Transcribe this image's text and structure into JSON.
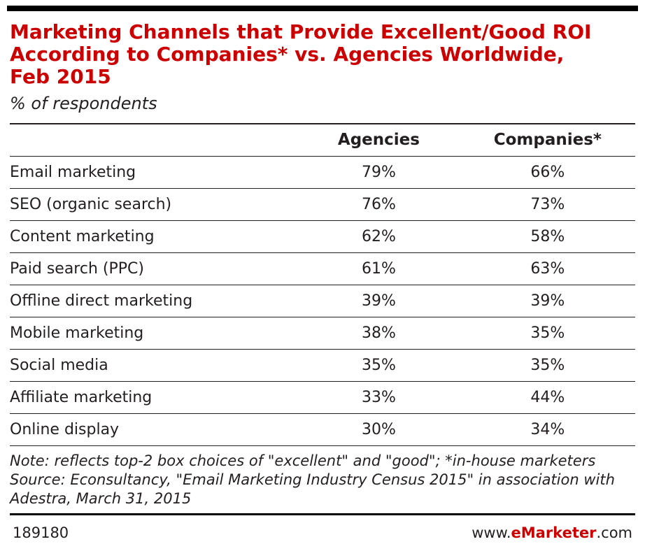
{
  "page": {
    "accent_color": "#cc0000",
    "text_color": "#231f20",
    "rule_color": "#231f20"
  },
  "header": {
    "title_lines": [
      "Marketing Channels that Provide Excellent/Good ROI",
      "According to Companies* vs. Agencies Worldwide,",
      "Feb 2015"
    ],
    "subtitle": "% of respondents"
  },
  "chart_data": {
    "type": "table",
    "title": "Marketing Channels that Provide Excellent/Good ROI According to Companies* vs. Agencies Worldwide, Feb 2015",
    "subtitle": "% of respondents",
    "columns": [
      "",
      "Agencies",
      "Companies*"
    ],
    "rows": [
      {
        "label": "Email marketing",
        "values": [
          "79%",
          "66%"
        ]
      },
      {
        "label": "SEO (organic search)",
        "values": [
          "76%",
          "73%"
        ]
      },
      {
        "label": "Content marketing",
        "values": [
          "62%",
          "58%"
        ]
      },
      {
        "label": "Paid search (PPC)",
        "values": [
          "61%",
          "63%"
        ]
      },
      {
        "label": "Offline direct marketing",
        "values": [
          "39%",
          "39%"
        ]
      },
      {
        "label": "Mobile marketing",
        "values": [
          "38%",
          "35%"
        ]
      },
      {
        "label": "Social media",
        "values": [
          "35%",
          "35%"
        ]
      },
      {
        "label": "Affiliate marketing",
        "values": [
          "33%",
          "44%"
        ]
      },
      {
        "label": "Online display",
        "values": [
          "30%",
          "34%"
        ]
      }
    ]
  },
  "notes": {
    "note": "Note: reflects top-2 box choices of \"excellent\" and \"good\"; *in-house marketers",
    "source": "Source: Econsultancy, \"Email Marketing Industry Census 2015\" in association with Adestra, March 31, 2015"
  },
  "footer": {
    "chart_id": "189180",
    "site_prefix": "www.",
    "site_brand": "eMarketer",
    "site_suffix": ".com"
  }
}
